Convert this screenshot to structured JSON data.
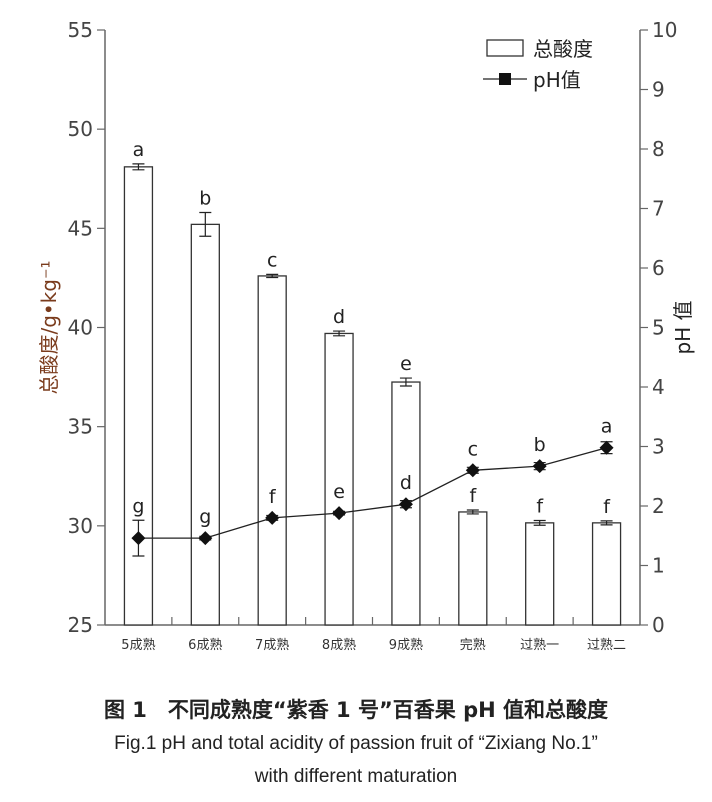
{
  "chart_data": {
    "type": "bar+line",
    "categories": [
      "5成熟",
      "6成熟",
      "7成熟",
      "8成熟",
      "9成熟",
      "完熟",
      "过熟一",
      "过熟二"
    ],
    "series": [
      {
        "name": "总酸度",
        "type": "bar",
        "axis": "left",
        "values": [
          48.1,
          45.2,
          42.6,
          39.7,
          37.25,
          30.7,
          30.15,
          30.15
        ],
        "errors": [
          0.15,
          0.6,
          0.08,
          0.12,
          0.2,
          0.1,
          0.12,
          0.1
        ],
        "letters": [
          "a",
          "b",
          "c",
          "d",
          "e",
          "f",
          "f",
          "f"
        ]
      },
      {
        "name": "pH值",
        "type": "line",
        "axis": "right",
        "values": [
          1.46,
          1.46,
          1.8,
          1.88,
          2.03,
          2.6,
          2.67,
          2.98
        ],
        "errors": [
          0.3,
          0.03,
          0.04,
          0.03,
          0.06,
          0.05,
          0.06,
          0.1
        ],
        "letters": [
          "g",
          "g",
          "f",
          "e",
          "d",
          "c",
          "b",
          "a"
        ]
      }
    ],
    "ylabel_left": "总酸度/g•kg⁻¹",
    "ylabel_right": "pH 值",
    "ylim_left": [
      25,
      55
    ],
    "yticks_left": [
      25,
      30,
      35,
      40,
      45,
      50,
      55
    ],
    "ylim_right": [
      0,
      10
    ],
    "yticks_right": [
      0,
      1,
      2,
      3,
      4,
      5,
      6,
      7,
      8,
      9,
      10
    ],
    "legend": "top-right",
    "grid": false
  },
  "caption": {
    "cn": "图 1　不同成熟度“紫香 1 号”百香果 pH 值和总酸度",
    "en1": "Fig.1   pH and total acidity of passion fruit of “Zixiang No.1”",
    "en2": "with different maturation"
  }
}
